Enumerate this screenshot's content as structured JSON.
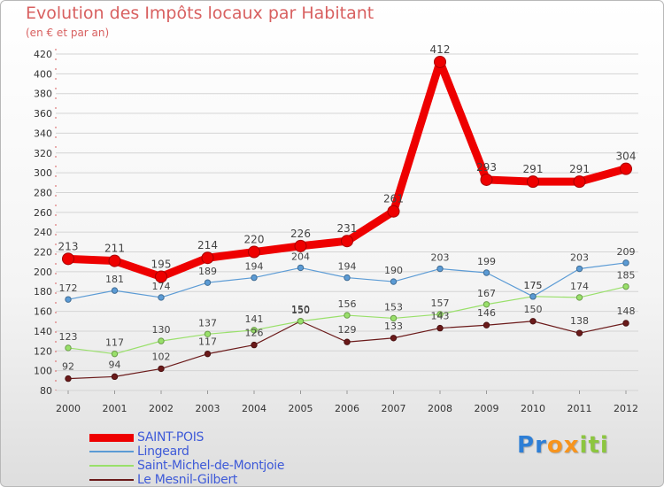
{
  "chart_data": {
    "type": "line",
    "title": "Evolution des Impôts locaux par Habitant",
    "subtitle": "(en € et par an)",
    "x": [
      "2000",
      "2001",
      "2002",
      "2003",
      "2004",
      "2005",
      "2006",
      "2007",
      "2008",
      "2009",
      "2010",
      "2011",
      "2012"
    ],
    "ylim": [
      80,
      420
    ],
    "yticks": [
      80,
      100,
      120,
      140,
      160,
      180,
      200,
      220,
      240,
      260,
      280,
      300,
      320,
      340,
      360,
      380,
      400,
      420
    ],
    "grid": "horizontal",
    "series": [
      {
        "name": "SAINT-POIS",
        "color": "#ee0000",
        "values": [
          213,
          211,
          195,
          214,
          220,
          226,
          231,
          261,
          412,
          293,
          291,
          291,
          304
        ]
      },
      {
        "name": "Lingeard",
        "color": "#5b9bd5",
        "values": [
          172,
          181,
          174,
          189,
          194,
          204,
          194,
          190,
          203,
          199,
          175,
          203,
          209
        ]
      },
      {
        "name": "Saint-Michel-de-Montjoie",
        "color": "#99e06a",
        "values": [
          123,
          117,
          130,
          137,
          141,
          150,
          156,
          153,
          157,
          167,
          175,
          174,
          185
        ]
      },
      {
        "name": "Le Mesnil-Gilbert",
        "color": "#6b1a1a",
        "values": [
          92,
          94,
          102,
          117,
          126,
          150,
          129,
          133,
          143,
          146,
          150,
          138,
          148
        ]
      }
    ]
  },
  "legend": {
    "items": [
      {
        "label": "SAINT-POIS",
        "color": "#ee0000"
      },
      {
        "label": "Lingeard",
        "color": "#5b9bd5"
      },
      {
        "label": "Saint-Michel-de-Montjoie",
        "color": "#99e06a"
      },
      {
        "label": "Le Mesnil-Gilbert",
        "color": "#6b1a1a"
      }
    ]
  },
  "logo": {
    "letters": [
      "P",
      "r",
      "o",
      "x",
      "i",
      "t",
      "i"
    ],
    "colors": [
      "#2e7fd6",
      "#2e7fd6",
      "#f7941d",
      "#f7941d",
      "#8cc63f",
      "#8cc63f",
      "#8cc63f"
    ]
  }
}
